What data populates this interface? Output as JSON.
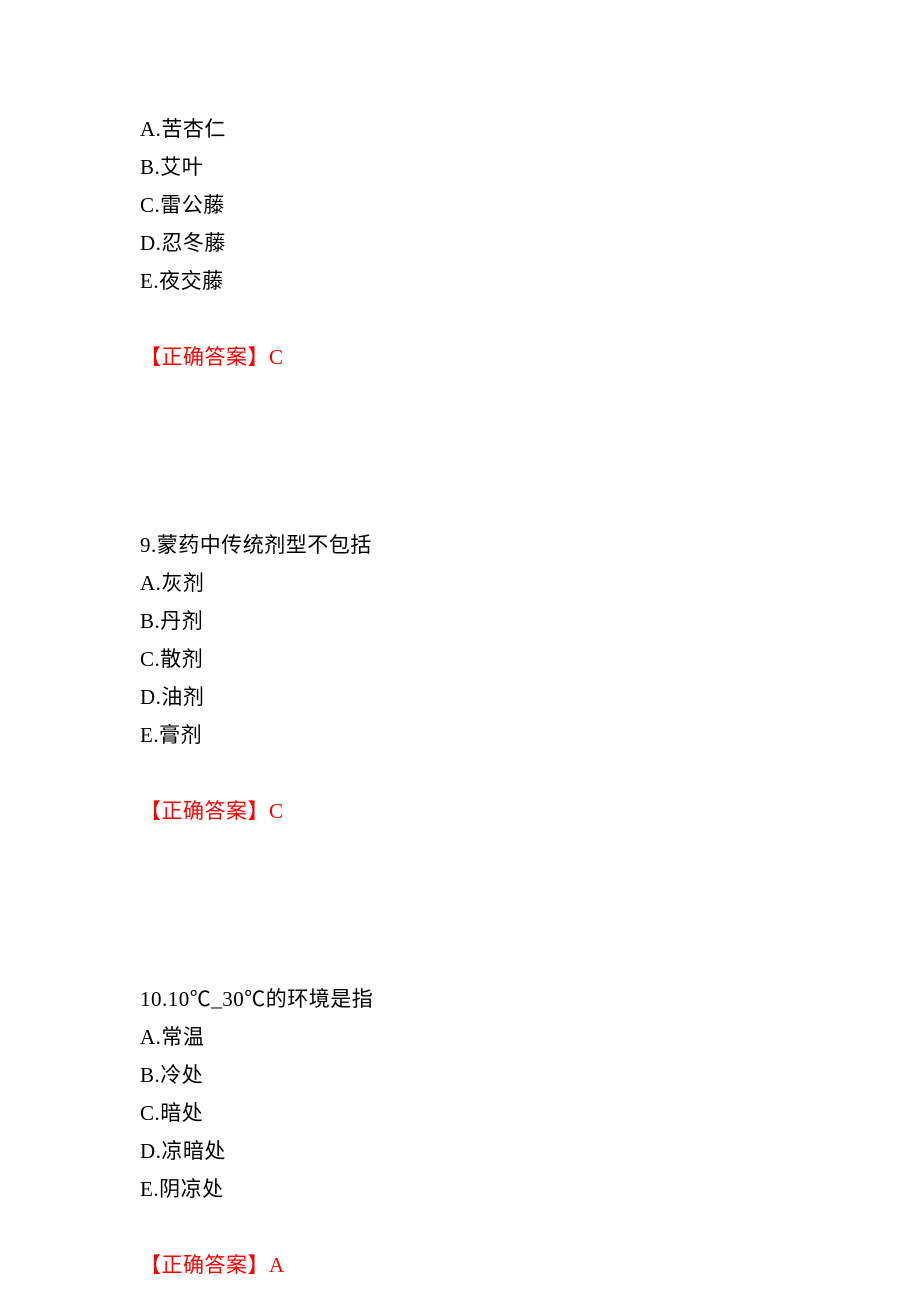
{
  "questions": [
    {
      "stem": "",
      "options": [
        "A.苦杏仁",
        "B.艾叶",
        "C.雷公藤",
        "D.忍冬藤",
        "E.夜交藤"
      ],
      "answer_label": "【正确答案】",
      "answer_value": "C"
    },
    {
      "stem": "9.蒙药中传统剂型不包括",
      "options": [
        "A.灰剂",
        "B.丹剂",
        "C.散剂",
        "D.油剂",
        "E.膏剂"
      ],
      "answer_label": "【正确答案】",
      "answer_value": "C"
    },
    {
      "stem": "10.10℃_30℃的环境是指",
      "options": [
        "A.常温",
        "B.冷处",
        "C.暗处",
        "D.凉暗处",
        "E.阴凉处"
      ],
      "answer_label": "【正确答案】",
      "answer_value": "A"
    }
  ],
  "colors": {
    "text": "#000000",
    "answer": "#ff0000",
    "background": "#ffffff"
  },
  "font_size_pt": 16
}
